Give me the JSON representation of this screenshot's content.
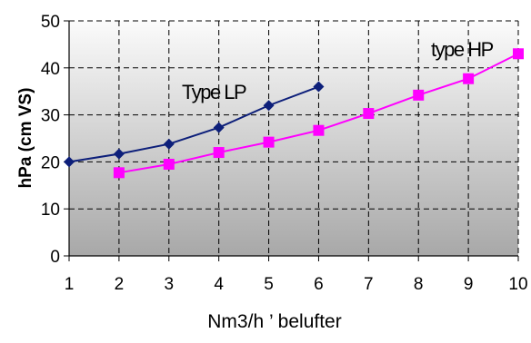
{
  "chart_data": {
    "type": "line",
    "title": "",
    "xlabel": "Nm3/h ’ belufter",
    "ylabel": "hPa (cm VS)",
    "xlim": [
      1,
      10
    ],
    "ylim": [
      0,
      50
    ],
    "x_ticks": [
      1,
      2,
      3,
      4,
      5,
      6,
      7,
      8,
      9,
      10
    ],
    "y_ticks": [
      0,
      10,
      20,
      30,
      40,
      50
    ],
    "grid": true,
    "grid_style": "dashed",
    "background": "vertical-gradient-light-gray-to-dark-gray",
    "legend": "none",
    "series": [
      {
        "name": "Type LP",
        "color": "#0d1f7a",
        "marker": "diamond",
        "x": [
          1,
          2,
          3,
          4,
          5,
          6
        ],
        "values": [
          20,
          21.7,
          23.8,
          27.3,
          32,
          36
        ]
      },
      {
        "name": "type HP",
        "color": "#ff00ff",
        "marker": "square",
        "x": [
          2,
          3,
          4,
          5,
          6,
          7,
          8,
          9,
          10
        ],
        "values": [
          17.7,
          19.5,
          22,
          24.2,
          26.7,
          30.3,
          34.2,
          37.7,
          43
        ]
      }
    ]
  }
}
